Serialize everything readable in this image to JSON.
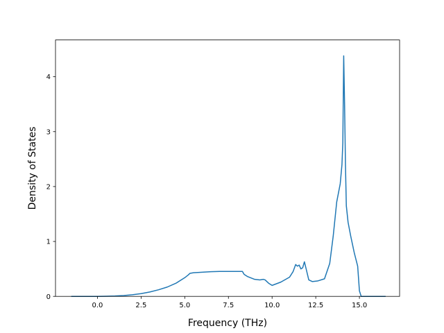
{
  "chart_data": {
    "type": "line",
    "title": "",
    "xlabel": "Frequency (THz)",
    "ylabel": "Density of States",
    "xlim": [
      -2.4,
      17.3
    ],
    "ylim": [
      0,
      4.67
    ],
    "xticks": [
      0.0,
      2.5,
      5.0,
      7.5,
      10.0,
      12.5,
      15.0
    ],
    "xtick_labels": [
      "0.0",
      "2.5",
      "5.0",
      "7.5",
      "10.0",
      "12.5",
      "15.0"
    ],
    "yticks": [
      0,
      1,
      2,
      3,
      4
    ],
    "ytick_labels": [
      "0",
      "1",
      "2",
      "3",
      "4"
    ],
    "grid": false,
    "legend": "none",
    "series": [
      {
        "color": "#1f77b4",
        "x": [
          -1.5,
          -1.0,
          -0.5,
          0.0,
          0.5,
          1.0,
          1.5,
          2.0,
          2.5,
          3.0,
          3.5,
          4.0,
          4.5,
          5.0,
          5.2,
          5.3,
          5.5,
          6.0,
          6.5,
          7.0,
          7.5,
          8.0,
          8.3,
          8.4,
          8.6,
          9.0,
          9.3,
          9.5,
          9.6,
          9.8,
          10.0,
          10.5,
          11.0,
          11.2,
          11.35,
          11.45,
          11.55,
          11.65,
          11.75,
          11.85,
          11.95,
          12.1,
          12.3,
          12.6,
          13.0,
          13.3,
          13.5,
          13.7,
          13.9,
          14.0,
          14.05,
          14.1,
          14.15,
          14.2,
          14.25,
          14.35,
          14.5,
          14.7,
          14.9,
          15.0,
          15.1,
          15.5,
          16.0,
          16.5
        ],
        "y": [
          0.0,
          0.0,
          0.0,
          0.0,
          0.003,
          0.007,
          0.015,
          0.03,
          0.05,
          0.08,
          0.12,
          0.17,
          0.24,
          0.34,
          0.39,
          0.42,
          0.43,
          0.44,
          0.45,
          0.455,
          0.455,
          0.455,
          0.455,
          0.4,
          0.36,
          0.31,
          0.3,
          0.31,
          0.3,
          0.24,
          0.2,
          0.26,
          0.35,
          0.45,
          0.58,
          0.55,
          0.57,
          0.5,
          0.52,
          0.63,
          0.5,
          0.3,
          0.27,
          0.28,
          0.32,
          0.6,
          1.1,
          1.72,
          2.05,
          2.4,
          2.8,
          4.38,
          3.5,
          2.4,
          1.65,
          1.35,
          1.1,
          0.8,
          0.55,
          0.1,
          0.0,
          0.0,
          0.0,
          0.0
        ]
      }
    ]
  }
}
